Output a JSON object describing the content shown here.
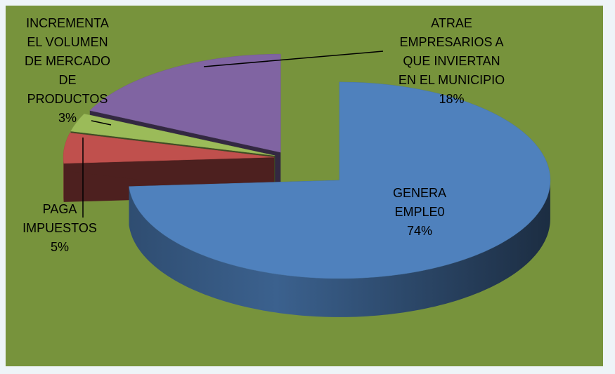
{
  "chart_data": {
    "type": "pie3d",
    "categories": [
      "GENERA EMPLE0",
      "PAGA IMPUESTOS",
      "INCREMENTA EL VOLUMEN DE MERCADO DE PRODUCTOS",
      "ATRAE EMPRESARIOS A QUE INVIERTAN EN EL MUNICIPIO"
    ],
    "values": [
      74,
      5,
      3,
      18
    ],
    "value_labels": [
      "74%",
      "5%",
      "3%",
      "18%"
    ],
    "colors": [
      "#4f81bd",
      "#c0504d",
      "#9bbb59",
      "#8064a2"
    ]
  }
}
